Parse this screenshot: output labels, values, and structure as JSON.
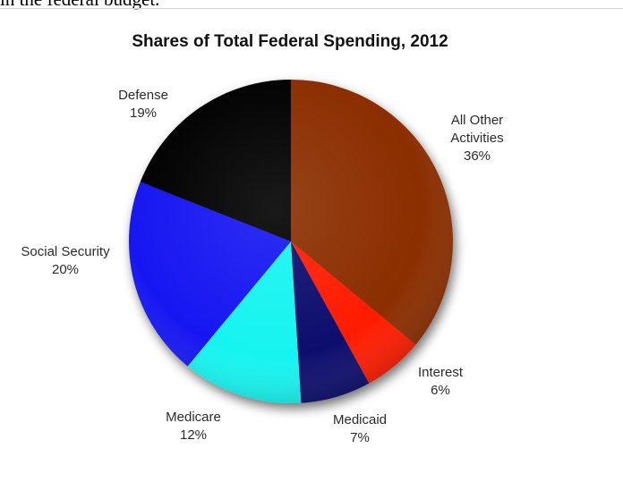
{
  "page": {
    "top_caption": "in the federal budget."
  },
  "chart_data": {
    "type": "pie",
    "title": "Shares of Total Federal Spending, 2012",
    "start_angle_deg": 0,
    "direction": "clockwise",
    "slices": [
      {
        "label": "All Other Activities",
        "value": 36,
        "value_label": "36%",
        "color": "#8b2d00"
      },
      {
        "label": "Interest",
        "value": 6,
        "value_label": "6%",
        "color": "#ff1a00"
      },
      {
        "label": "Medicaid",
        "value": 7,
        "value_label": "7%",
        "color": "#0a0a6e"
      },
      {
        "label": "Medicare",
        "value": 12,
        "value_label": "12%",
        "color": "#19f4f0"
      },
      {
        "label": "Social Security",
        "value": 20,
        "value_label": "20%",
        "color": "#1212f2"
      },
      {
        "label": "Defense",
        "value": 19,
        "value_label": "19%",
        "color": "#040404"
      }
    ]
  }
}
